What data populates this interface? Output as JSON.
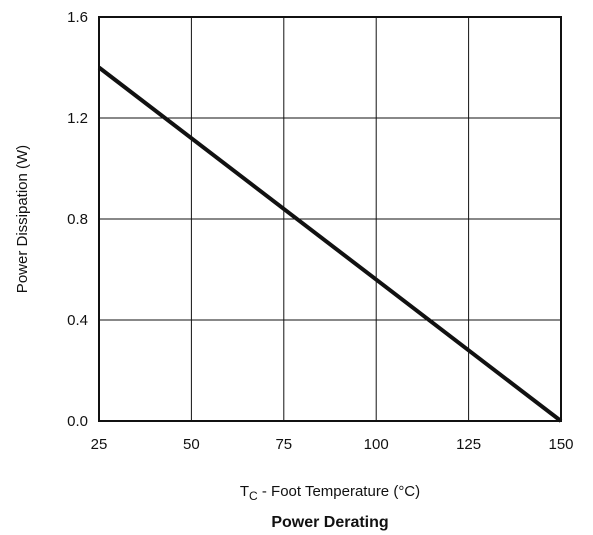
{
  "chart_data": {
    "type": "line",
    "title": "Power Derating",
    "xlabel": {
      "main": "T",
      "subscript": "C",
      "rest": " - Foot Temperature (°C)"
    },
    "ylabel": "Power Dissipation (W)",
    "xlim": [
      25,
      150
    ],
    "ylim": [
      0.0,
      1.6
    ],
    "xticks": [
      25,
      50,
      75,
      100,
      125,
      150
    ],
    "xtick_labels": [
      "25",
      "50",
      "75",
      "100",
      "125",
      "150"
    ],
    "yticks": [
      0.0,
      0.4,
      0.8,
      1.2,
      1.6
    ],
    "ytick_labels": [
      "0.0",
      "0.4",
      "0.8",
      "1.2",
      "1.6"
    ],
    "grid": true,
    "legend": "none",
    "series": [
      {
        "x": [
          25,
          150
        ],
        "y": [
          1.4,
          0.0
        ],
        "color": "#111111"
      }
    ]
  }
}
